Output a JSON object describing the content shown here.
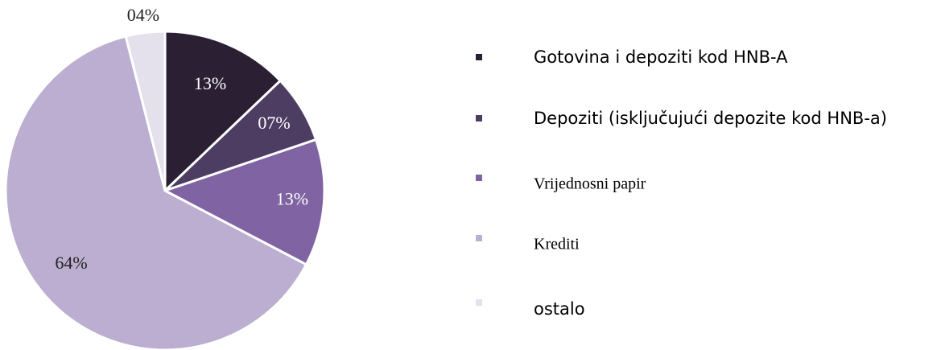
{
  "chart_data": {
    "type": "pie",
    "categories": [
      "Gotovina i depoziti kod HNB-A",
      "Depoziti (isključujući depozite kod HNB-a)",
      "Vrijednosni papir",
      "Krediti",
      "ostalo"
    ],
    "values": [
      13,
      7,
      13,
      64,
      4
    ],
    "value_labels": [
      "13%",
      "07%",
      "13%",
      "64%",
      "04%"
    ],
    "colors": [
      "#2a1f33",
      "#4e3d63",
      "#7f63a2",
      "#bcaed0",
      "#e4e0ec"
    ]
  }
}
